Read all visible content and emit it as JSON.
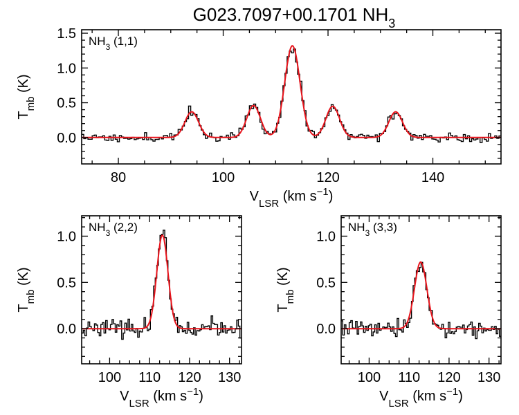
{
  "title": "G023.7097+00.1701 NH",
  "title_sub": "3",
  "colors": {
    "data": "#000000",
    "fit": "#e8141c",
    "frame": "#000000"
  },
  "chart_data": [
    {
      "type": "line",
      "panel": "top",
      "label_main": "NH",
      "label_sub": "3",
      "label_rest": " (1,1)",
      "xlabel_main": "V",
      "xlabel_sub": "LSR",
      "xlabel_rest": " (km s",
      "xlabel_sup": "−1",
      "xlabel_end": ")",
      "ylabel_main": "T",
      "ylabel_sub": "mb",
      "ylabel_rest": " (K)",
      "xlim": [
        73,
        153
      ],
      "ylim": [
        -0.38,
        1.55
      ],
      "xticks": [
        80,
        100,
        120,
        140
      ],
      "xtick_labels": [
        "80",
        "100",
        "120",
        "140"
      ],
      "yticks": [
        0.0,
        0.5,
        1.0,
        1.5
      ],
      "ytick_labels": [
        "0.0",
        "0.5",
        "1.0",
        "1.5"
      ],
      "series": [
        {
          "kind": "fit",
          "components": [
            {
              "center": 94.0,
              "amp": 0.37,
              "sigma": 1.3
            },
            {
              "center": 105.8,
              "amp": 0.46,
              "sigma": 1.3
            },
            {
              "center": 113.2,
              "amp": 1.32,
              "sigma": 1.45
            },
            {
              "center": 120.9,
              "amp": 0.45,
              "sigma": 1.3
            },
            {
              "center": 132.9,
              "amp": 0.37,
              "sigma": 1.3
            }
          ]
        },
        {
          "kind": "data",
          "channel_width": 0.4,
          "noise": 0.035,
          "seed": 11
        }
      ]
    },
    {
      "type": "line",
      "panel": "bottom-left",
      "label_main": "NH",
      "label_sub": "3",
      "label_rest": " (2,2)",
      "xlabel_main": "V",
      "xlabel_sub": "LSR",
      "xlabel_rest": " (km s",
      "xlabel_sup": "−1",
      "xlabel_end": ")",
      "ylabel_main": "T",
      "ylabel_sub": "mb",
      "ylabel_rest": " (K)",
      "xlim": [
        93,
        133
      ],
      "ylim": [
        -0.38,
        1.22
      ],
      "xticks": [
        100,
        110,
        120,
        130
      ],
      "xtick_labels": [
        "100",
        "110",
        "120",
        "130"
      ],
      "yticks": [
        0.0,
        0.5,
        1.0
      ],
      "ytick_labels": [
        "0.0",
        "0.5",
        "1.0"
      ],
      "series": [
        {
          "kind": "fit",
          "components": [
            {
              "center": 113.2,
              "amp": 1.01,
              "sigma": 1.4
            }
          ]
        },
        {
          "kind": "data",
          "channel_width": 0.4,
          "noise": 0.045,
          "seed": 23
        }
      ]
    },
    {
      "type": "line",
      "panel": "bottom-right",
      "label_main": "NH",
      "label_sub": "3",
      "label_rest": " (3,3)",
      "xlabel_main": "V",
      "xlabel_sub": "LSR",
      "xlabel_rest": " (km s",
      "xlabel_sup": "−1",
      "xlabel_end": ")",
      "ylabel_main": "T",
      "ylabel_sub": "mb",
      "ylabel_rest": " (K)",
      "xlim": [
        93,
        133
      ],
      "ylim": [
        -0.38,
        1.22
      ],
      "xticks": [
        100,
        110,
        120,
        130
      ],
      "xtick_labels": [
        "100",
        "110",
        "120",
        "130"
      ],
      "yticks": [
        0.0,
        0.5,
        1.0
      ],
      "ytick_labels": [
        "0.0",
        "0.5",
        "1.0"
      ],
      "series": [
        {
          "kind": "fit",
          "components": [
            {
              "center": 112.9,
              "amp": 0.72,
              "sigma": 1.55
            }
          ]
        },
        {
          "kind": "data",
          "channel_width": 0.4,
          "noise": 0.045,
          "seed": 37
        }
      ]
    }
  ]
}
